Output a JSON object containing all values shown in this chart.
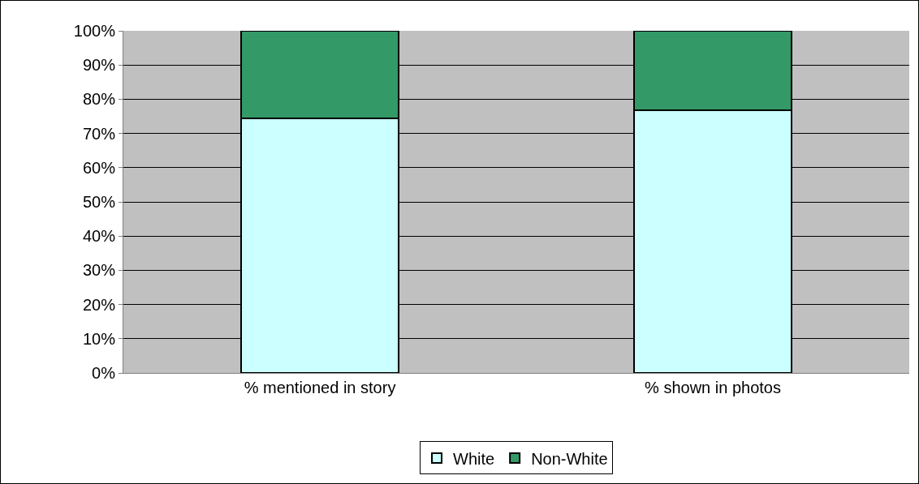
{
  "chart_data": {
    "type": "bar",
    "stacked": true,
    "categories": [
      "% mentioned in story",
      "% shown in photos"
    ],
    "series": [
      {
        "name": "White",
        "color": "#ccffff",
        "values": [
          74.5,
          76.7
        ]
      },
      {
        "name": "Non-White",
        "color": "#339966",
        "values": [
          25.5,
          23.3
        ]
      }
    ],
    "ylim": [
      0,
      100
    ],
    "yticks": [
      {
        "value": 0,
        "label": "0%"
      },
      {
        "value": 10,
        "label": "10%"
      },
      {
        "value": 20,
        "label": "20%"
      },
      {
        "value": 30,
        "label": "30%"
      },
      {
        "value": 40,
        "label": "40%"
      },
      {
        "value": 50,
        "label": "50%"
      },
      {
        "value": 60,
        "label": "60%"
      },
      {
        "value": 70,
        "label": "70%"
      },
      {
        "value": 80,
        "label": "80%"
      },
      {
        "value": 90,
        "label": "90%"
      },
      {
        "value": 100,
        "label": "100%"
      }
    ],
    "grid": "y",
    "legend": "bottom"
  }
}
